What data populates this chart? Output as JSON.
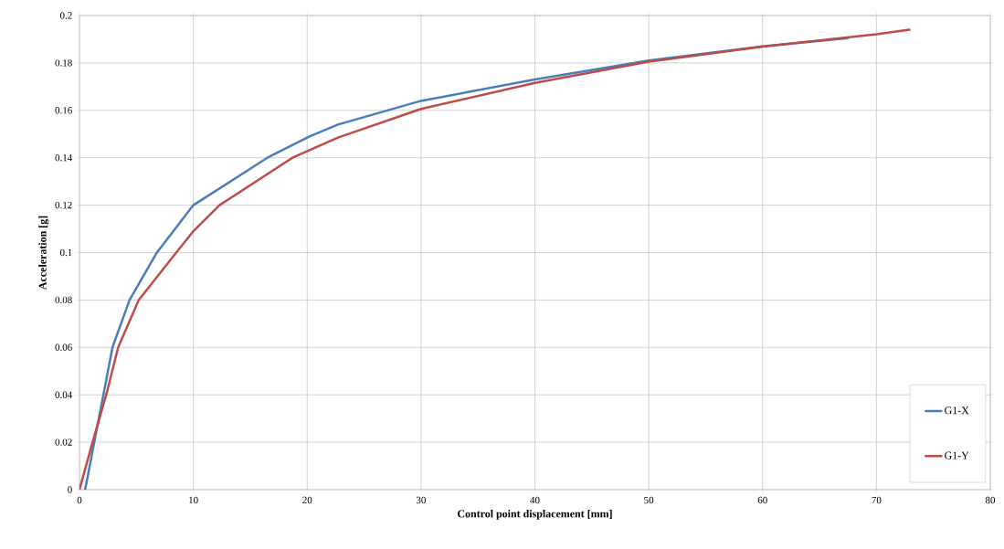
{
  "chart_data": {
    "type": "line",
    "xlabel": "Control point displacement [mm]",
    "ylabel": "Acceleration [g]",
    "xlim": [
      0,
      80
    ],
    "xticks": [
      0,
      10,
      20,
      30,
      40,
      50,
      60,
      70,
      80
    ],
    "ylim": [
      0,
      0.2
    ],
    "yticks": [
      0,
      0.02,
      0.04,
      0.06,
      0.08,
      0.1,
      0.12,
      0.14,
      0.16,
      0.18,
      0.2
    ],
    "grid": true,
    "legend": "bottom right",
    "marker": "none",
    "line_style": "solid",
    "series": [
      {
        "name": "G1-X",
        "color": "#4a7ebb",
        "x": [
          0.5,
          1.3,
          2.1,
          2.9,
          4.4,
          6.8,
          10,
          16.5,
          20.2,
          22.7,
          30,
          40,
          50,
          60,
          67.5
        ],
        "values": [
          0,
          0.02,
          0.04,
          0.06,
          0.08,
          0.1,
          0.12,
          0.14,
          0.149,
          0.154,
          0.164,
          0.173,
          0.181,
          0.187,
          0.1905
        ]
      },
      {
        "name": "G1-Y",
        "color": "#be4b48",
        "x": [
          0,
          1.15,
          2.35,
          3.4,
          5.2,
          8.5,
          10,
          12.3,
          18.7,
          22.7,
          30,
          40,
          50,
          60,
          70,
          72.9
        ],
        "values": [
          0,
          0.02,
          0.04,
          0.06,
          0.08,
          0.1,
          0.109,
          0.12,
          0.14,
          0.1485,
          0.1606,
          0.1716,
          0.1805,
          0.1869,
          0.1921,
          0.194
        ]
      }
    ]
  }
}
